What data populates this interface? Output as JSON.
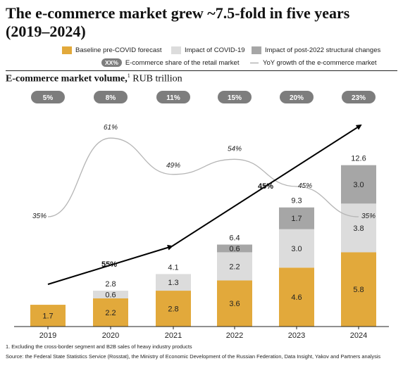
{
  "title": "The e-commerce market grew ~7.5-fold in five years (2019–2024)",
  "legend": {
    "baseline": "Baseline pre-COVID forecast",
    "covid": "Impact of COVID-19",
    "structural": "Impact of post-2022 structural changes",
    "share_badge": "XX%",
    "share": "E-commerce share of the retail market",
    "yoy": "YoY growth of the e-commerce market"
  },
  "subtitle": {
    "bold": "E-commerce market volume,",
    "sup": "1",
    "unit": " RUB trillion"
  },
  "chart_data": {
    "type": "bar",
    "stacked": true,
    "categories": [
      "2019",
      "2020",
      "2021",
      "2022",
      "2023",
      "2024"
    ],
    "series": [
      {
        "name": "Baseline pre-COVID forecast",
        "color": "#e2a93b",
        "values": [
          1.7,
          2.2,
          2.8,
          3.6,
          4.6,
          5.8
        ]
      },
      {
        "name": "Impact of COVID-19",
        "color": "#dcdcdc",
        "values": [
          null,
          0.6,
          1.3,
          2.2,
          3.0,
          3.8
        ]
      },
      {
        "name": "Impact of post-2022 structural changes",
        "color": "#a6a6a6",
        "values": [
          null,
          null,
          null,
          0.6,
          1.7,
          3.0
        ]
      }
    ],
    "totals": [
      "",
      "2.8",
      "4.1",
      "6.4",
      "9.3",
      "12.6"
    ],
    "ecommerce_share": [
      "5%",
      "8%",
      "11%",
      "15%",
      "20%",
      "23%"
    ],
    "yoy_growth": {
      "name": "YoY growth of the e-commerce market",
      "values": [
        35,
        61,
        49,
        54,
        45,
        35
      ],
      "labels": [
        "35%",
        "61%",
        "49%",
        "54%",
        "45%",
        "35%"
      ],
      "color": "#b5b5b5"
    },
    "cagr_arrows": [
      {
        "from": "2019",
        "to": "2021",
        "label": "55%"
      },
      {
        "from": "2021",
        "to": "2024",
        "label": "45%"
      }
    ],
    "ylim": [
      0,
      14
    ],
    "colors": {
      "share_pill": "#7d7d7d",
      "arrow": "#000000",
      "axis": "#222222"
    }
  },
  "footnotes": {
    "note1": "1.   Excluding the cross-border segment and B2B sales of heavy industry products",
    "source": "Source: the Federal State Statistics Service (Rosstat), the Ministry of Economic Development of the Russian Federation, Data Insight, Yakov and Partners analysis"
  }
}
